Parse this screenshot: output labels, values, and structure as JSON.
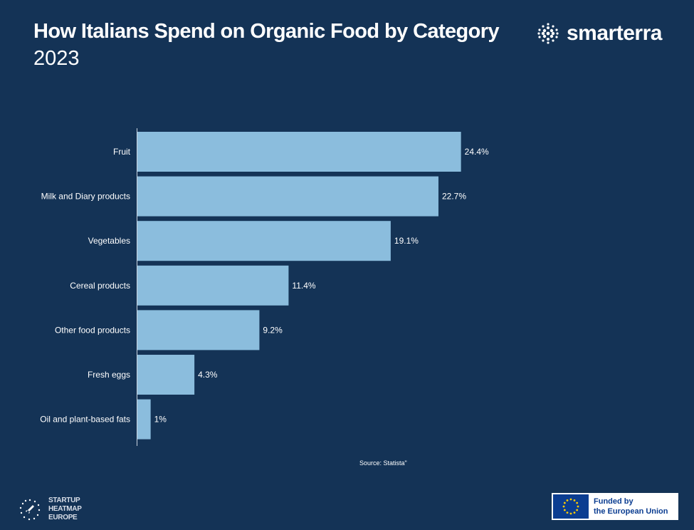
{
  "header": {
    "title": "How Italians Spend on Organic Food by Category",
    "subtitle": "2023"
  },
  "brand": {
    "name": "smarterra",
    "icon": "dot-grid-icon"
  },
  "chart_data": {
    "type": "bar",
    "orientation": "horizontal",
    "categories": [
      "Fruit",
      "Milk and Diary products",
      "Vegetables",
      "Cereal products",
      "Other food products",
      "Fresh eggs",
      "Oil and plant-based fats"
    ],
    "values": [
      24.4,
      22.7,
      19.1,
      11.4,
      9.2,
      4.3,
      1
    ],
    "value_labels": [
      "24.4%",
      "22.7%",
      "19.1%",
      "11.4%",
      "9.2%",
      "4.3%",
      "1%"
    ],
    "xlim": [
      0,
      30
    ],
    "grid": false,
    "bar_color": "#8bbddd"
  },
  "source": "Source: Statista\"",
  "footer": {
    "heatmap_logo_line1": "STARTUP HEATMAP",
    "heatmap_logo_line2": "EUROPE",
    "eu_line1": "Funded by",
    "eu_line2": "the European Union"
  },
  "colors": {
    "background": "#143356",
    "bar": "#8bbddd",
    "eu_blue": "#0b3d91",
    "eu_star": "#ffcc00"
  }
}
